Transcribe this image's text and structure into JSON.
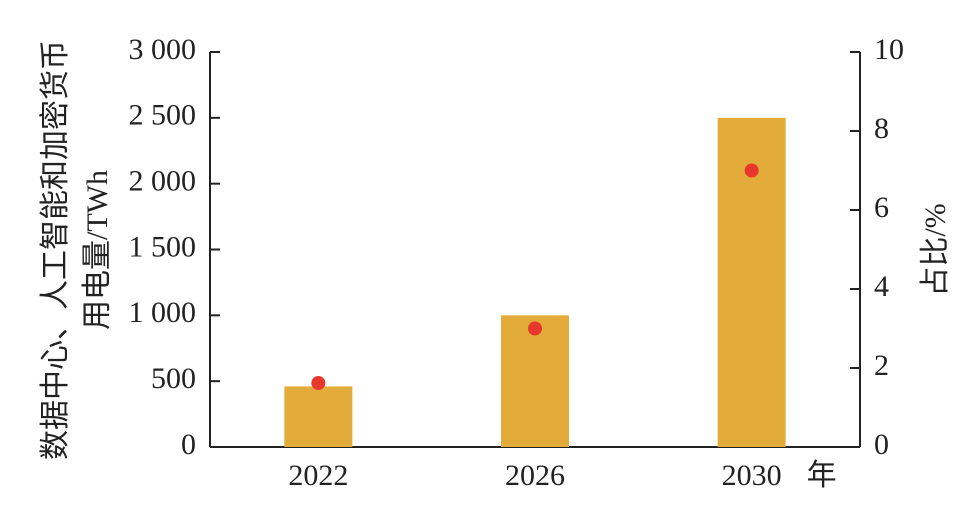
{
  "chart_data": {
    "type": "bar",
    "ylabel": [
      "数据中心、人工智能和加密货币",
      "用电量/TWh"
    ],
    "y2label": "占比/%",
    "xlabel": "年",
    "categories": [
      "2022",
      "2026",
      "2030"
    ],
    "series": [
      {
        "type": "bar",
        "color": "#e3ab3a",
        "values": [
          460,
          1000,
          2500
        ]
      },
      {
        "type": "scatter",
        "axis": "y2",
        "color": "#e8382e",
        "values": [
          1.62,
          3.0,
          7.0
        ]
      }
    ],
    "ylim": [
      0,
      3000
    ],
    "yticks": [
      0,
      500,
      {
        "value": 1000,
        "label": "1 000"
      },
      {
        "value": 1500,
        "label": "1 500"
      },
      {
        "value": 2000,
        "label": "2 000"
      },
      {
        "value": 2500,
        "label": "2 500"
      },
      {
        "value": 3000,
        "label": "3 000"
      }
    ],
    "y2lim": [
      0,
      10
    ],
    "y2ticks": [
      0,
      2,
      4,
      6,
      8,
      10
    ]
  }
}
